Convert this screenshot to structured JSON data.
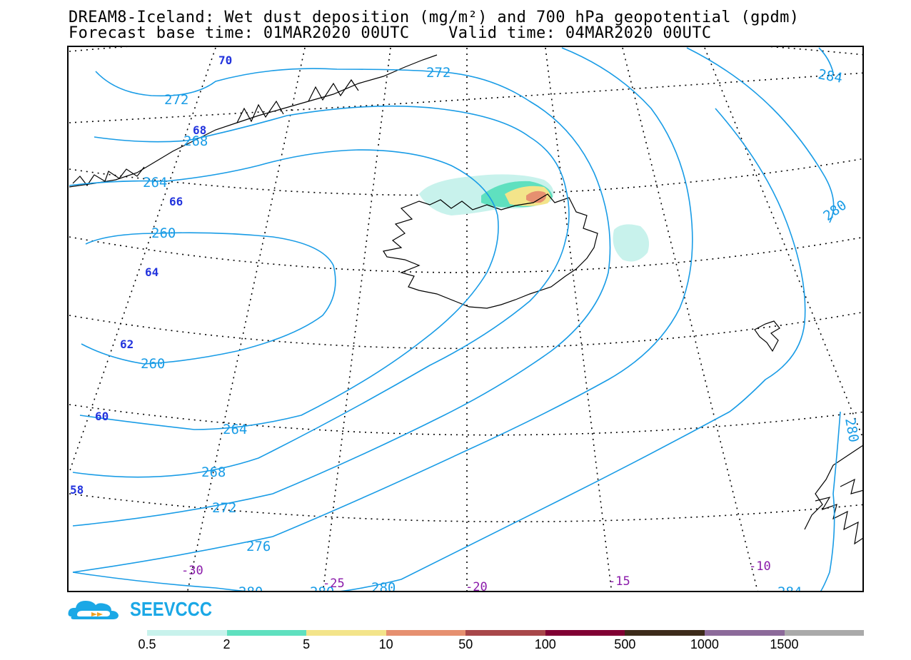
{
  "title": {
    "line1": "DREAM8-Iceland: Wet dust deposition (mg/m²) and 700 hPa geopotential (gpdm)",
    "line2": "Forecast base time: 01MAR2020 00UTC    Valid time: 04MAR2020 00UTC"
  },
  "logo": {
    "text": "SEEVCCC"
  },
  "contour_labels": [
    "272",
    "272",
    "268",
    "264",
    "260",
    "260",
    "264",
    "268",
    "272",
    "276",
    "280",
    "280",
    "280",
    "284",
    "280",
    "280",
    "284"
  ],
  "latitude_labels": [
    "70",
    "68",
    "66",
    "64",
    "62",
    "60",
    "58"
  ],
  "longitude_labels": [
    "-30",
    "-25",
    "-20",
    "-15",
    "-10"
  ],
  "legend": {
    "labels": [
      "0.5",
      "2",
      "5",
      "10",
      "50",
      "100",
      "500",
      "1000",
      "1500"
    ],
    "colors": [
      "#c8f2ec",
      "#5fe0bf",
      "#f3e48a",
      "#e69070",
      "#a8474a",
      "#800033",
      "#3d2b1a",
      "#8c6a9a",
      "#aaaaaa"
    ]
  },
  "colors": {
    "contour": "#199ce6",
    "latitude_label": "#2233dd",
    "longitude_label": "#8a1aaa",
    "graticule": "#000000",
    "coast": "#000000"
  }
}
